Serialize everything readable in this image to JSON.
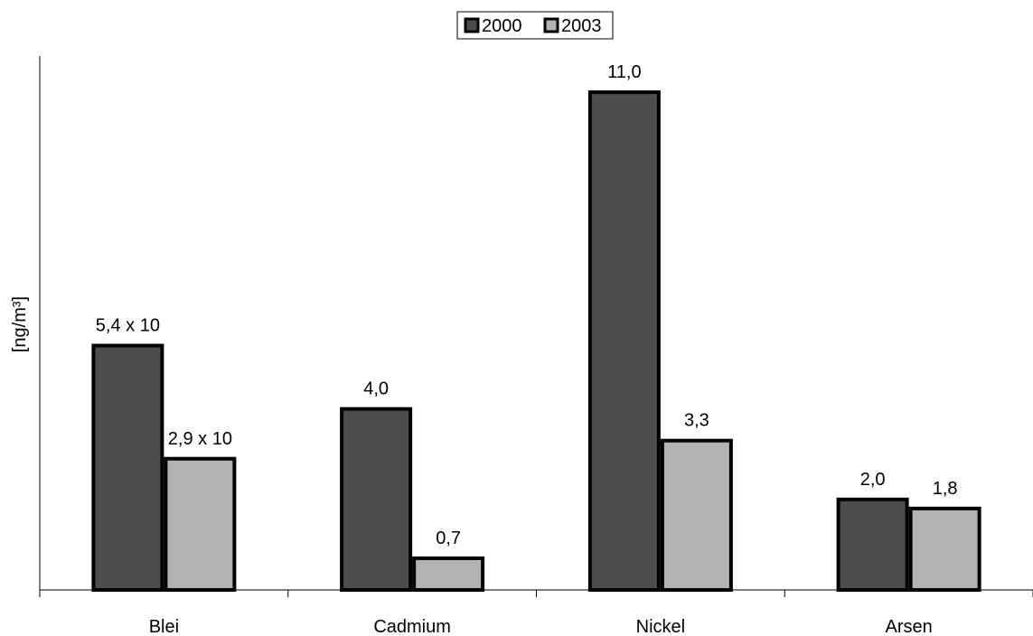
{
  "chart_data": {
    "type": "bar",
    "categories": [
      "Blei",
      "Cadmium",
      "Nickel",
      "Arsen"
    ],
    "series": [
      {
        "name": "2000",
        "color": "#4d4d4d",
        "values": [
          5.4,
          4.0,
          11.0,
          2.0
        ],
        "plotted_values": [
          5.4,
          4.0,
          11.0,
          2.0
        ],
        "labels": [
          "5,4 x 10",
          "4,0",
          "11,0",
          "2,0"
        ]
      },
      {
        "name": "2003",
        "color": "#b3b3b3",
        "values": [
          2.9,
          0.7,
          3.3,
          1.8
        ],
        "plotted_values": [
          2.9,
          0.7,
          3.3,
          1.8
        ],
        "labels": [
          "2,9 x 10",
          "0,7",
          "3,3",
          "1,8"
        ]
      }
    ],
    "title": "",
    "xlabel": "",
    "ylabel": "[ng/m³]",
    "ylim": [
      0,
      11.8
    ],
    "grid": false,
    "legend_position": "top-center"
  }
}
